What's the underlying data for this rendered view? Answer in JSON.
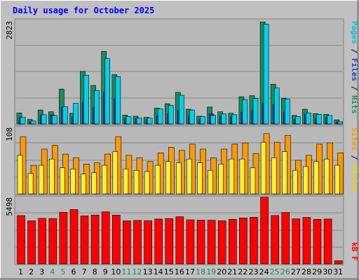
{
  "chart_data": [
    {
      "type": "bar",
      "title": "Daily usage for October 2025",
      "ylabel": "2823",
      "right_label": {
        "pages": "Pages",
        "files": "Files",
        "hits": "Hits",
        "sep": " / "
      },
      "colors": {
        "hits": "#1a8c5e",
        "files": "#1f3fbf",
        "pages": "#00d0f0"
      },
      "ylim": [
        0,
        2823
      ],
      "categories": [
        "1",
        "2",
        "3",
        "4",
        "5",
        "6",
        "7",
        "8",
        "9",
        "10",
        "11",
        "12",
        "13",
        "14",
        "15",
        "16",
        "17",
        "18",
        "19",
        "20",
        "21",
        "22",
        "23",
        "24",
        "25",
        "26",
        "27",
        "28",
        "29",
        "30",
        "31"
      ],
      "weekend_color": "#1a8c5e",
      "weekend_days": [
        "4",
        "5",
        "11",
        "12",
        "18",
        "19",
        "25",
        "26"
      ],
      "series": [
        {
          "name": "Hits",
          "values": [
            300,
            120,
            380,
            330,
            950,
            290,
            1430,
            1050,
            1980,
            1340,
            240,
            210,
            180,
            430,
            550,
            860,
            400,
            210,
            460,
            330,
            290,
            740,
            770,
            2780,
            1080,
            700,
            230,
            400,
            280,
            260,
            110
          ]
        },
        {
          "name": "Files",
          "values": [
            160,
            60,
            240,
            240,
            450,
            180,
            580,
            440,
            870,
            680,
            140,
            140,
            110,
            210,
            270,
            360,
            210,
            120,
            270,
            200,
            190,
            320,
            360,
            560,
            520,
            330,
            120,
            250,
            160,
            160,
            50
          ]
        },
        {
          "name": "Pages",
          "values": [
            180,
            80,
            250,
            230,
            470,
            560,
            1330,
            910,
            1780,
            1290,
            200,
            160,
            160,
            410,
            510,
            780,
            380,
            200,
            230,
            270,
            250,
            660,
            690,
            2720,
            980,
            680,
            200,
            300,
            260,
            230,
            60
          ]
        }
      ]
    },
    {
      "type": "bar",
      "ylabel": "108",
      "right_label": {
        "sites": "Sites",
        "visits": "Visits",
        "sep": " / "
      },
      "colors": {
        "visits": "#ff9900",
        "sites": "#ffee33"
      },
      "ylim": [
        0,
        108
      ],
      "categories": [
        "1",
        "2",
        "3",
        "4",
        "5",
        "6",
        "7",
        "8",
        "9",
        "10",
        "11",
        "12",
        "13",
        "14",
        "15",
        "16",
        "17",
        "18",
        "19",
        "20",
        "21",
        "22",
        "23",
        "24",
        "25",
        "26",
        "27",
        "28",
        "29",
        "30",
        "31"
      ],
      "series": [
        {
          "name": "Visits",
          "values": [
            92,
            46,
            72,
            78,
            64,
            58,
            48,
            50,
            64,
            92,
            62,
            58,
            52,
            66,
            75,
            70,
            80,
            72,
            58,
            72,
            80,
            82,
            65,
            97,
            83,
            94,
            54,
            62,
            80,
            82,
            66
          ]
        },
        {
          "name": "Sites",
          "values": [
            62,
            33,
            46,
            56,
            42,
            40,
            32,
            34,
            46,
            68,
            40,
            38,
            36,
            46,
            52,
            50,
            56,
            50,
            38,
            48,
            56,
            56,
            42,
            83,
            58,
            68,
            38,
            44,
            52,
            56,
            46
          ]
        }
      ]
    },
    {
      "type": "bar",
      "ylabel": "5498",
      "right_label": {
        "kb": "kB F"
      },
      "colors": {
        "kb": "#ff0000"
      },
      "ylim": [
        0,
        5498
      ],
      "categories": [
        "1",
        "2",
        "3",
        "4",
        "5",
        "6",
        "7",
        "8",
        "9",
        "10",
        "11",
        "12",
        "13",
        "14",
        "15",
        "16",
        "17",
        "18",
        "19",
        "20",
        "21",
        "22",
        "23",
        "24",
        "25",
        "26",
        "27",
        "28",
        "29",
        "30",
        "31"
      ],
      "series": [
        {
          "name": "kB F",
          "values": [
            3950,
            3530,
            3730,
            3710,
            4220,
            4450,
            3930,
            4000,
            4260,
            3990,
            3520,
            3560,
            3540,
            3670,
            3710,
            3860,
            3610,
            3580,
            3570,
            3530,
            3650,
            3760,
            3820,
            5450,
            3960,
            4210,
            3690,
            3810,
            3650,
            3670,
            260
          ]
        }
      ]
    }
  ]
}
